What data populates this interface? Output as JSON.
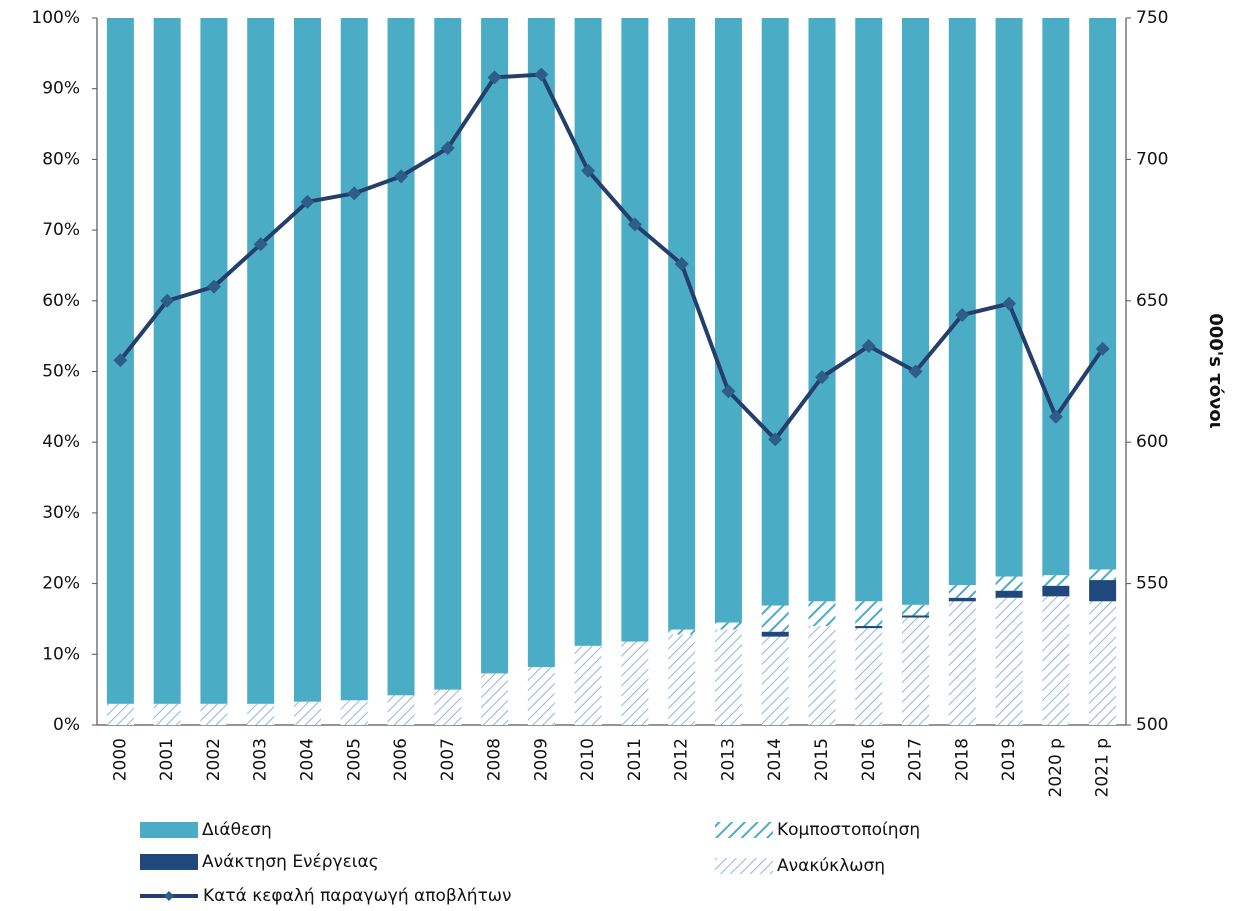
{
  "chart_data": {
    "type": "bar",
    "stacked": true,
    "categories": [
      "2000",
      "2001",
      "2002",
      "2003",
      "2004",
      "2005",
      "2006",
      "2007",
      "2008",
      "2009",
      "2010",
      "2011",
      "2012",
      "2013",
      "2014",
      "2015",
      "2016",
      "2017",
      "2018",
      "2019",
      "2020 p",
      "2021 p"
    ],
    "series": [
      {
        "name": "Ανακύκλωση",
        "color": "#95b3d7",
        "hatch": true,
        "values": [
          3,
          3,
          3,
          3,
          3.3,
          3.5,
          4.2,
          5,
          7.3,
          8.2,
          11.2,
          11.8,
          12.8,
          13.5,
          12.5,
          14,
          13.7,
          15.2,
          17.5,
          18,
          18.2,
          17.5
        ]
      },
      {
        "name": "Ανάκτηση Ενέργειας",
        "color": "#1f497d",
        "values": [
          0,
          0,
          0,
          0,
          0,
          0,
          0,
          0,
          0,
          0,
          0,
          0,
          0,
          0,
          0.7,
          0,
          0.3,
          0.3,
          0.5,
          1,
          1.5,
          3
        ]
      },
      {
        "name": "Κομποστοποίηση",
        "color": "#4bacc6",
        "hatch": true,
        "values": [
          0,
          0,
          0,
          0,
          0,
          0,
          0,
          0,
          0,
          0,
          0,
          0,
          0.7,
          1,
          3.7,
          3.5,
          3.5,
          1.5,
          1.8,
          2,
          1.5,
          1.5
        ]
      },
      {
        "name": "Διάθεση",
        "color": "#4bacc6",
        "values": [
          97,
          97,
          97,
          97,
          96.7,
          96.5,
          95.8,
          95,
          92.7,
          91.8,
          88.8,
          88.2,
          86.5,
          85.5,
          83.1,
          82.5,
          82.5,
          83,
          80.2,
          79,
          78.8,
          78
        ]
      },
      {
        "name": "Κατά κεφαλή παραγωγή αποβλήτων",
        "type": "line",
        "axis": "y2",
        "color": "#243f6b",
        "values": [
          629,
          650,
          655,
          670,
          685,
          688,
          694,
          704,
          729,
          730,
          696,
          677,
          663,
          618,
          601,
          623,
          634,
          625,
          645,
          649,
          609,
          633
        ]
      }
    ],
    "ylim": [
      0,
      100
    ],
    "yticks": [
      {
        "value": 0,
        "label": "0%"
      },
      {
        "value": 10,
        "label": "10%"
      },
      {
        "value": 20,
        "label": "20%"
      },
      {
        "value": 30,
        "label": "30%"
      },
      {
        "value": 40,
        "label": "40%"
      },
      {
        "value": 50,
        "label": "50%"
      },
      {
        "value": 60,
        "label": "60%"
      },
      {
        "value": 70,
        "label": "70%"
      },
      {
        "value": 80,
        "label": "80%"
      },
      {
        "value": 90,
        "label": "90%"
      },
      {
        "value": 100,
        "label": "100%"
      }
    ],
    "y2lim": [
      500,
      750
    ],
    "y2ticks": [
      500,
      550,
      600,
      650,
      700,
      750
    ],
    "y2label": "000's τόνοι",
    "legend": "bottom"
  }
}
